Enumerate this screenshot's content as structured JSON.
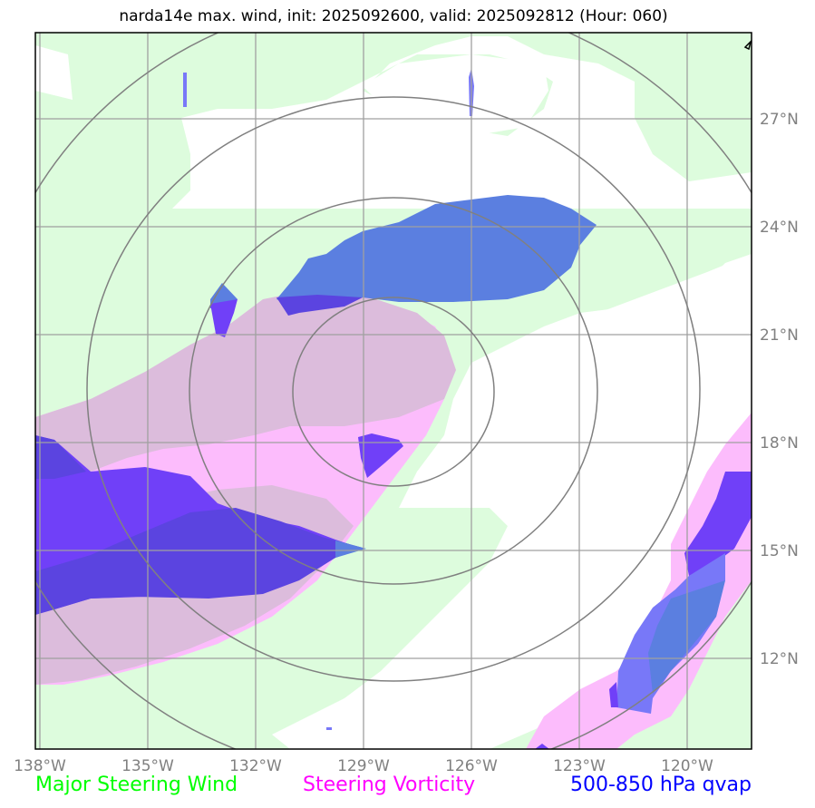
{
  "title": "narda14e max. wind, init: 2025092600, valid: 2025092812 (Hour: 060)",
  "map": {
    "lon_ticks": [
      "138°W",
      "135°W",
      "132°W",
      "129°W",
      "126°W",
      "123°W",
      "120°W"
    ],
    "lat_ticks": [
      "27°N",
      "24°N",
      "21°N",
      "18°N",
      "15°N",
      "12°N"
    ],
    "storm_center": {
      "lon": -127.5,
      "lat": 19.5
    },
    "range_rings_deg": [
      3,
      6,
      9,
      12
    ]
  },
  "legend": {
    "wind": {
      "label": "Major Steering Wind",
      "color": "#00ff00"
    },
    "vorticity": {
      "label": "Steering Vorticity",
      "color": "#ff00ff"
    },
    "qvap": {
      "label": "500-850 hPa qvap",
      "color": "#0000ff"
    }
  },
  "colors": {
    "wind_fill": "#ddfcdd",
    "vorticity_fill": "#fcbcfc",
    "vorticity_overlap": "#dcbcdc",
    "qvap_light": "#5b7fe0",
    "qvap_purple": "#7040f8",
    "qvap_dark": "#5b44e0",
    "qvap_mid": "#7878f8",
    "grid": "#a0a0a0",
    "ring": "#808080"
  }
}
